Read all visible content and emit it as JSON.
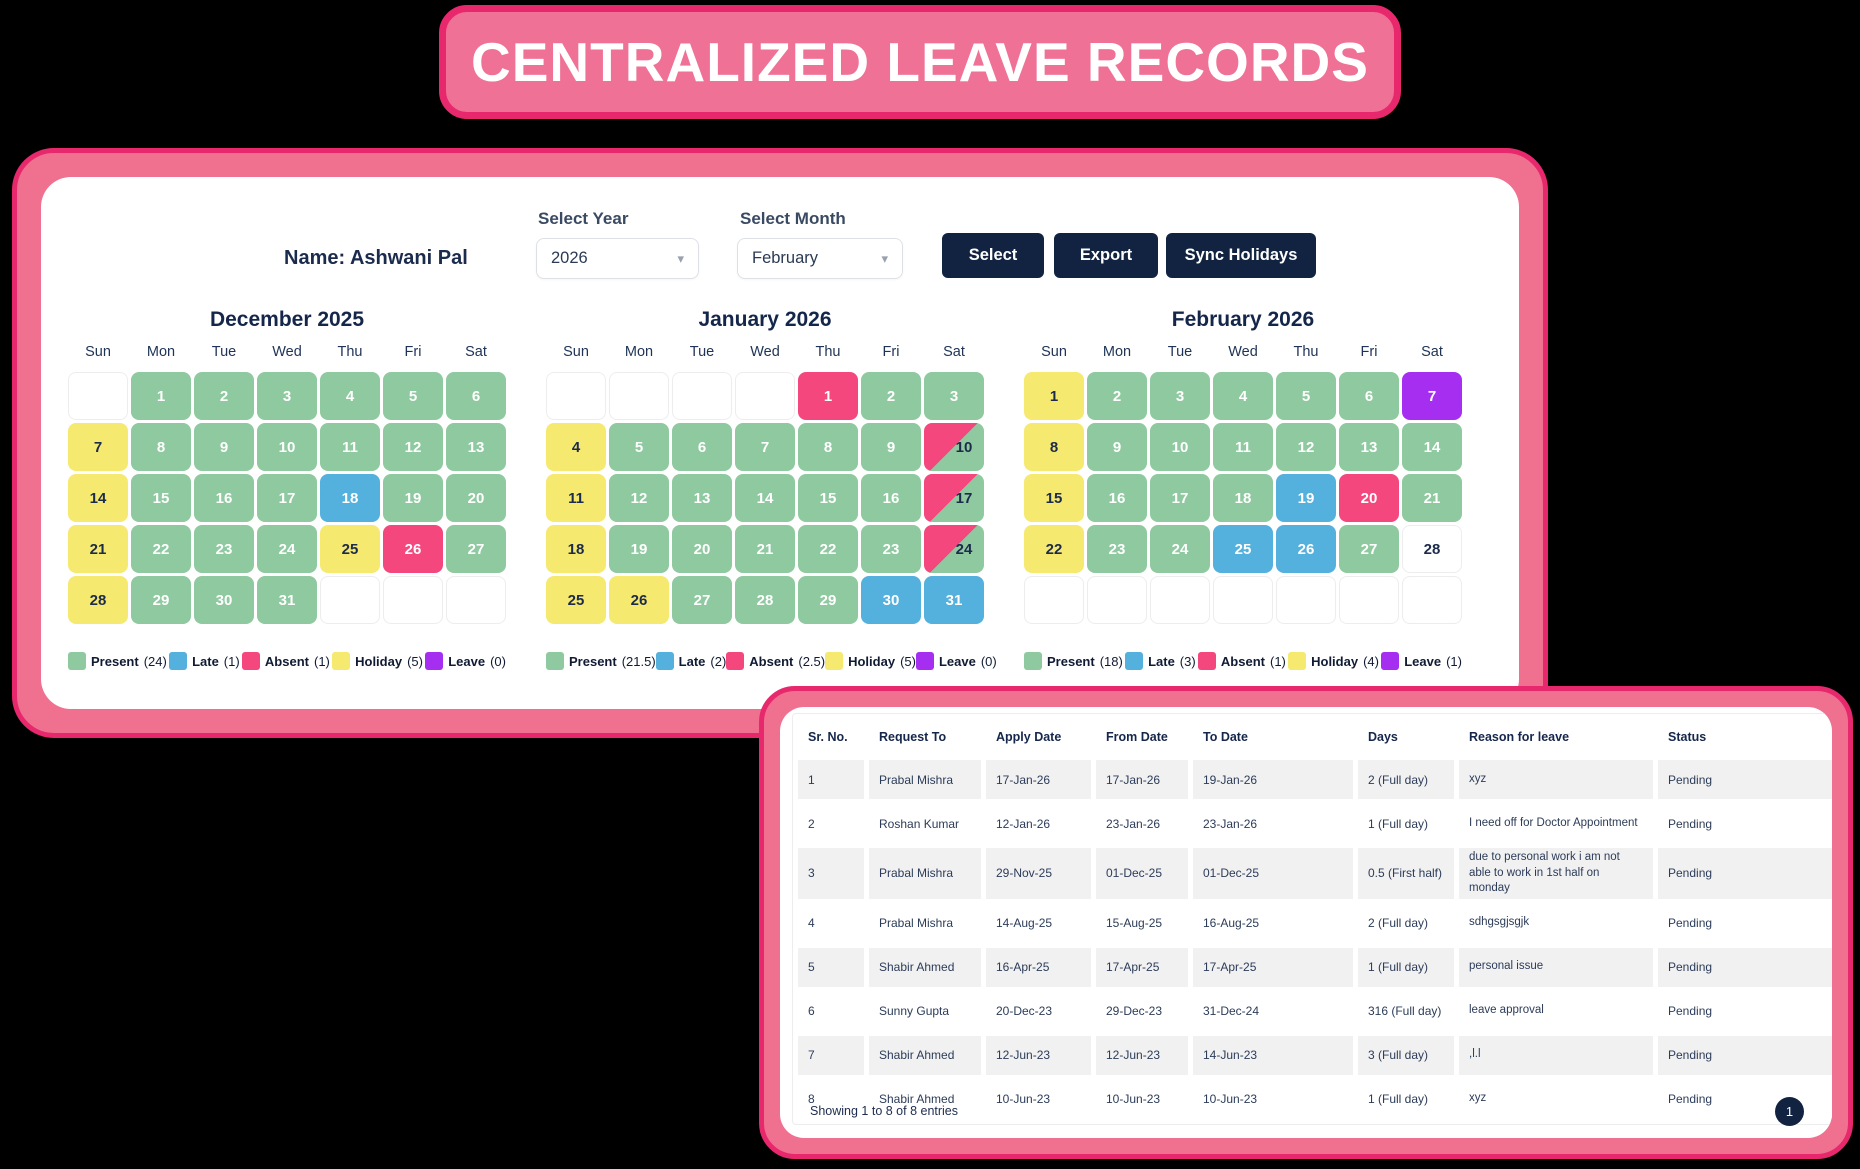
{
  "banner": {
    "title": "CENTRALIZED LEAVE RECORDS"
  },
  "colors": {
    "banner_pink": "#ef7196",
    "frame_pink": "#f0708f",
    "frame_border": "#e8286c",
    "navy": "#112340",
    "present": "#8fc9a0",
    "late": "#54b0dd",
    "absent": "#f4477e",
    "holiday": "#f6e96f",
    "leave": "#a62ef0"
  },
  "controls": {
    "name_label": "Name: Ashwani Pal",
    "select_year_label": "Select Year",
    "year_value": "2026",
    "select_month_label": "Select Month",
    "month_value": "February",
    "buttons": [
      {
        "label": "Select"
      },
      {
        "label": "Export"
      },
      {
        "label": "Sync Holidays"
      }
    ]
  },
  "calendars": [
    {
      "title": "December 2025",
      "weekdays": [
        "Sun",
        "Mon",
        "Tue",
        "Wed",
        "Thu",
        "Fri",
        "Sat"
      ],
      "cells": [
        {
          "d": "",
          "s": "empty"
        },
        {
          "d": "1",
          "s": "present"
        },
        {
          "d": "2",
          "s": "present"
        },
        {
          "d": "3",
          "s": "present"
        },
        {
          "d": "4",
          "s": "present"
        },
        {
          "d": "5",
          "s": "present"
        },
        {
          "d": "6",
          "s": "present"
        },
        {
          "d": "7",
          "s": "holiday"
        },
        {
          "d": "8",
          "s": "present"
        },
        {
          "d": "9",
          "s": "present"
        },
        {
          "d": "10",
          "s": "present"
        },
        {
          "d": "11",
          "s": "present"
        },
        {
          "d": "12",
          "s": "present"
        },
        {
          "d": "13",
          "s": "present"
        },
        {
          "d": "14",
          "s": "holiday"
        },
        {
          "d": "15",
          "s": "present"
        },
        {
          "d": "16",
          "s": "present"
        },
        {
          "d": "17",
          "s": "present"
        },
        {
          "d": "18",
          "s": "late"
        },
        {
          "d": "19",
          "s": "present"
        },
        {
          "d": "20",
          "s": "present"
        },
        {
          "d": "21",
          "s": "holiday"
        },
        {
          "d": "22",
          "s": "present"
        },
        {
          "d": "23",
          "s": "present"
        },
        {
          "d": "24",
          "s": "present"
        },
        {
          "d": "25",
          "s": "holiday"
        },
        {
          "d": "26",
          "s": "absent"
        },
        {
          "d": "27",
          "s": "present"
        },
        {
          "d": "28",
          "s": "holiday"
        },
        {
          "d": "29",
          "s": "present"
        },
        {
          "d": "30",
          "s": "present"
        },
        {
          "d": "31",
          "s": "present"
        },
        {
          "d": "",
          "s": "empty"
        },
        {
          "d": "",
          "s": "empty"
        },
        {
          "d": "",
          "s": "empty"
        }
      ],
      "legend": [
        {
          "key": "present",
          "label": "Present",
          "count": "(24)"
        },
        {
          "key": "late",
          "label": "Late",
          "count": "(1)"
        },
        {
          "key": "absent",
          "label": "Absent",
          "count": "(1)"
        },
        {
          "key": "holiday",
          "label": "Holiday",
          "count": "(5)"
        },
        {
          "key": "leave",
          "label": "Leave",
          "count": "(0)"
        }
      ]
    },
    {
      "title": "January 2026",
      "weekdays": [
        "Sun",
        "Mon",
        "Tue",
        "Wed",
        "Thu",
        "Fri",
        "Sat"
      ],
      "cells": [
        {
          "d": "",
          "s": "empty"
        },
        {
          "d": "",
          "s": "empty"
        },
        {
          "d": "",
          "s": "empty"
        },
        {
          "d": "",
          "s": "empty"
        },
        {
          "d": "1",
          "s": "absent"
        },
        {
          "d": "2",
          "s": "present"
        },
        {
          "d": "3",
          "s": "present"
        },
        {
          "d": "4",
          "s": "holiday"
        },
        {
          "d": "5",
          "s": "present"
        },
        {
          "d": "6",
          "s": "present"
        },
        {
          "d": "7",
          "s": "present"
        },
        {
          "d": "8",
          "s": "present"
        },
        {
          "d": "9",
          "s": "present"
        },
        {
          "d": "10",
          "s": "half"
        },
        {
          "d": "11",
          "s": "holiday"
        },
        {
          "d": "12",
          "s": "present"
        },
        {
          "d": "13",
          "s": "present"
        },
        {
          "d": "14",
          "s": "present"
        },
        {
          "d": "15",
          "s": "present"
        },
        {
          "d": "16",
          "s": "present"
        },
        {
          "d": "17",
          "s": "half"
        },
        {
          "d": "18",
          "s": "holiday"
        },
        {
          "d": "19",
          "s": "present"
        },
        {
          "d": "20",
          "s": "present"
        },
        {
          "d": "21",
          "s": "present"
        },
        {
          "d": "22",
          "s": "present"
        },
        {
          "d": "23",
          "s": "present"
        },
        {
          "d": "24",
          "s": "half"
        },
        {
          "d": "25",
          "s": "holiday"
        },
        {
          "d": "26",
          "s": "holiday"
        },
        {
          "d": "27",
          "s": "present"
        },
        {
          "d": "28",
          "s": "present"
        },
        {
          "d": "29",
          "s": "present"
        },
        {
          "d": "30",
          "s": "late"
        },
        {
          "d": "31",
          "s": "late"
        }
      ],
      "legend": [
        {
          "key": "present",
          "label": "Present",
          "count": "(21.5)"
        },
        {
          "key": "late",
          "label": "Late",
          "count": "(2)"
        },
        {
          "key": "absent",
          "label": "Absent",
          "count": "(2.5)"
        },
        {
          "key": "holiday",
          "label": "Holiday",
          "count": "(5)"
        },
        {
          "key": "leave",
          "label": "Leave",
          "count": "(0)"
        }
      ]
    },
    {
      "title": "February 2026",
      "weekdays": [
        "Sun",
        "Mon",
        "Tue",
        "Wed",
        "Thu",
        "Fri",
        "Sat"
      ],
      "cells": [
        {
          "d": "1",
          "s": "holiday"
        },
        {
          "d": "2",
          "s": "present"
        },
        {
          "d": "3",
          "s": "present"
        },
        {
          "d": "4",
          "s": "present"
        },
        {
          "d": "5",
          "s": "present"
        },
        {
          "d": "6",
          "s": "present"
        },
        {
          "d": "7",
          "s": "leave"
        },
        {
          "d": "8",
          "s": "holiday"
        },
        {
          "d": "9",
          "s": "present"
        },
        {
          "d": "10",
          "s": "present"
        },
        {
          "d": "11",
          "s": "present"
        },
        {
          "d": "12",
          "s": "present"
        },
        {
          "d": "13",
          "s": "present"
        },
        {
          "d": "14",
          "s": "present"
        },
        {
          "d": "15",
          "s": "holiday"
        },
        {
          "d": "16",
          "s": "present"
        },
        {
          "d": "17",
          "s": "present"
        },
        {
          "d": "18",
          "s": "present"
        },
        {
          "d": "19",
          "s": "late"
        },
        {
          "d": "20",
          "s": "absent"
        },
        {
          "d": "21",
          "s": "present"
        },
        {
          "d": "22",
          "s": "holiday"
        },
        {
          "d": "23",
          "s": "present"
        },
        {
          "d": "24",
          "s": "present"
        },
        {
          "d": "25",
          "s": "late"
        },
        {
          "d": "26",
          "s": "late"
        },
        {
          "d": "27",
          "s": "present"
        },
        {
          "d": "28",
          "s": "plain"
        },
        {
          "d": "",
          "s": "empty"
        },
        {
          "d": "",
          "s": "empty"
        },
        {
          "d": "",
          "s": "empty"
        },
        {
          "d": "",
          "s": "empty"
        },
        {
          "d": "",
          "s": "empty"
        },
        {
          "d": "",
          "s": "empty"
        },
        {
          "d": "",
          "s": "empty"
        }
      ],
      "legend": [
        {
          "key": "present",
          "label": "Present",
          "count": "(18)"
        },
        {
          "key": "late",
          "label": "Late",
          "count": "(3)"
        },
        {
          "key": "absent",
          "label": "Absent",
          "count": "(1)"
        },
        {
          "key": "holiday",
          "label": "Holiday",
          "count": "(4)"
        },
        {
          "key": "leave",
          "label": "Leave",
          "count": "(1)"
        }
      ]
    }
  ],
  "leave_table": {
    "headers": [
      "Sr. No.",
      "Request To",
      "Apply Date",
      "From Date",
      "To Date",
      "Days",
      "Reason for leave",
      "Status"
    ],
    "rows": [
      [
        "1",
        "Prabal Mishra",
        "17-Jan-26",
        "17-Jan-26",
        "19-Jan-26",
        "2 (Full day)",
        "xyz",
        "Pending"
      ],
      [
        "2",
        "Roshan Kumar",
        "12-Jan-26",
        "23-Jan-26",
        "23-Jan-26",
        "1 (Full day)",
        "I need off for Doctor Appointment",
        "Pending"
      ],
      [
        "3",
        "Prabal Mishra",
        "29-Nov-25",
        "01-Dec-25",
        "01-Dec-25",
        "0.5 (First half)",
        "due to personal work i am not able to work in 1st half on monday",
        "Pending"
      ],
      [
        "4",
        "Prabal Mishra",
        "14-Aug-25",
        "15-Aug-25",
        "16-Aug-25",
        "2 (Full day)",
        "sdhgsgjsgjk",
        "Pending"
      ],
      [
        "5",
        "Shabir Ahmed",
        "16-Apr-25",
        "17-Apr-25",
        "17-Apr-25",
        "1 (Full day)",
        "personal issue",
        "Pending"
      ],
      [
        "6",
        "Sunny Gupta",
        "20-Dec-23",
        "29-Dec-23",
        "31-Dec-24",
        "316 (Full day)",
        "leave approval",
        "Pending"
      ],
      [
        "7",
        "Shabir Ahmed",
        "12-Jun-23",
        "12-Jun-23",
        "14-Jun-23",
        "3 (Full day)",
        ",l.l",
        "Pending"
      ],
      [
        "8",
        "Shabir Ahmed",
        "10-Jun-23",
        "10-Jun-23",
        "10-Jun-23",
        "1 (Full day)",
        "xyz",
        "Pending"
      ]
    ],
    "footer": "Showing 1 to 8 of 8 entries",
    "pagination": "1"
  }
}
